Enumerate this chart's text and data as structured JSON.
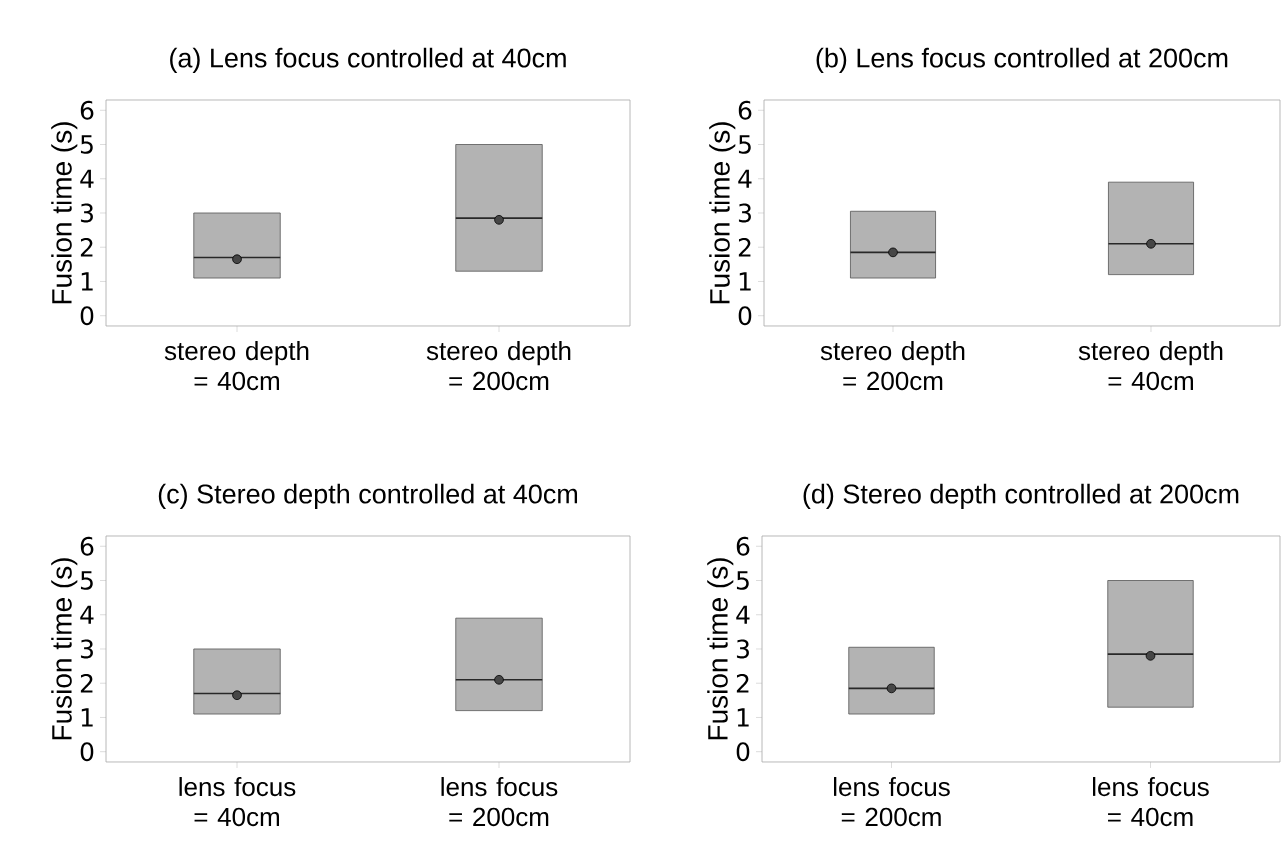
{
  "chart_data": [
    {
      "type": "box",
      "title": "(a) Lens focus controlled at 40cm",
      "ylabel": "Fusion time (s)",
      "categories": [
        "stereo depth = 40cm",
        "stereo depth = 200cm"
      ],
      "color": "#b3b3b3",
      "ylim": [
        -0.3,
        6.3
      ],
      "yticks": [
        0,
        1,
        2,
        3,
        4,
        5,
        6
      ],
      "boxes": [
        {
          "low": 1.1,
          "q1": 1.1,
          "median": 1.7,
          "q3": 3.0,
          "high": 3.0,
          "mean": 1.65
        },
        {
          "low": 1.3,
          "q1": 1.3,
          "median": 2.85,
          "q3": 5.0,
          "high": 5.0,
          "mean": 2.8
        }
      ]
    },
    {
      "type": "box",
      "title": "(b) Lens focus controlled at 200cm",
      "ylabel": "Fusion time (s)",
      "categories": [
        "stereo depth = 200cm",
        "stereo depth = 40cm"
      ],
      "color": "#b3b3b3",
      "ylim": [
        -0.3,
        6.3
      ],
      "yticks": [
        0,
        1,
        2,
        3,
        4,
        5,
        6
      ],
      "boxes": [
        {
          "low": 1.1,
          "q1": 1.1,
          "median": 1.85,
          "q3": 3.05,
          "high": 3.05,
          "mean": 1.85
        },
        {
          "low": 1.2,
          "q1": 1.2,
          "median": 2.1,
          "q3": 3.9,
          "high": 3.9,
          "mean": 2.1
        }
      ]
    },
    {
      "type": "box",
      "title": "(c) Stereo depth controlled at 40cm",
      "ylabel": "Fusion time (s)",
      "categories": [
        "lens focus = 40cm",
        "lens focus = 200cm"
      ],
      "color": "#b3b3b3",
      "ylim": [
        -0.3,
        6.3
      ],
      "yticks": [
        0,
        1,
        2,
        3,
        4,
        5,
        6
      ],
      "boxes": [
        {
          "low": 1.1,
          "q1": 1.1,
          "median": 1.7,
          "q3": 3.0,
          "high": 3.0,
          "mean": 1.65
        },
        {
          "low": 1.2,
          "q1": 1.2,
          "median": 2.1,
          "q3": 3.9,
          "high": 3.9,
          "mean": 2.1
        }
      ]
    },
    {
      "type": "box",
      "title": "(d) Stereo depth controlled at 200cm",
      "ylabel": "Fusion time (s)",
      "categories": [
        "lens focus = 200cm",
        "lens focus = 40cm"
      ],
      "color": "#b3b3b3",
      "ylim": [
        -0.3,
        6.3
      ],
      "yticks": [
        0,
        1,
        2,
        3,
        4,
        5,
        6
      ],
      "boxes": [
        {
          "low": 1.1,
          "q1": 1.1,
          "median": 1.85,
          "q3": 3.05,
          "high": 3.05,
          "mean": 1.85
        },
        {
          "low": 1.3,
          "q1": 1.3,
          "median": 2.85,
          "q3": 5.0,
          "high": 5.0,
          "mean": 2.8
        }
      ]
    }
  ]
}
